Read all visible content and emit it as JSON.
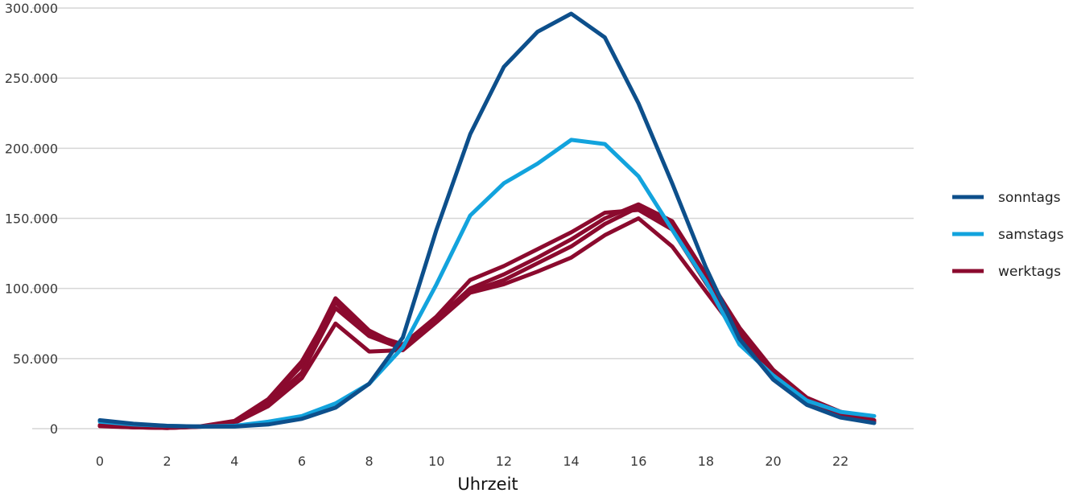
{
  "chart_data": {
    "type": "line",
    "title": "",
    "xlabel": "Uhrzeit",
    "ylabel": "",
    "xlim": [
      0,
      23
    ],
    "ylim": [
      0,
      300000
    ],
    "x_ticks": [
      "0",
      "2",
      "4",
      "6",
      "8",
      "10",
      "12",
      "14",
      "16",
      "18",
      "20",
      "22"
    ],
    "y_ticks": [
      "0",
      "50.000",
      "100.000",
      "150.000",
      "200.000",
      "250.000",
      "300.000"
    ],
    "grid": "horizontal",
    "legend_position": "right",
    "x": [
      0,
      1,
      2,
      3,
      4,
      5,
      6,
      7,
      8,
      9,
      10,
      11,
      12,
      13,
      14,
      15,
      16,
      17,
      18,
      19,
      20,
      21,
      22,
      23
    ],
    "legend": [
      {
        "label": "sonntags",
        "color": "#0d4f8b"
      },
      {
        "label": "samstags",
        "color": "#12a3dd"
      },
      {
        "label": "werktags",
        "color": "#8b0a2e"
      }
    ],
    "series": [
      {
        "group": "werktags",
        "color": "#8b0a2e",
        "values": [
          2000,
          1000,
          500,
          1500,
          5000,
          20000,
          45000,
          93000,
          70000,
          58000,
          78000,
          100000,
          110000,
          122000,
          135000,
          150000,
          160000,
          148000,
          110000,
          72000,
          42000,
          22000,
          12000,
          6000
        ]
      },
      {
        "group": "werktags",
        "color": "#8b0a2e",
        "values": [
          2500,
          1200,
          700,
          1700,
          5500,
          21000,
          48000,
          90000,
          68000,
          60000,
          80000,
          106000,
          116000,
          128000,
          140000,
          154000,
          156000,
          142000,
          104000,
          68000,
          40000,
          21000,
          11000,
          5500
        ]
      },
      {
        "group": "werktags",
        "color": "#8b0a2e",
        "values": [
          2000,
          1000,
          500,
          1500,
          4500,
          18000,
          40000,
          86000,
          66000,
          57000,
          77000,
          98000,
          106000,
          118000,
          130000,
          146000,
          158000,
          145000,
          108000,
          70000,
          41000,
          22000,
          12000,
          6000
        ]
      },
      {
        "group": "werktags",
        "color": "#8b0a2e",
        "values": [
          1800,
          900,
          500,
          1400,
          4000,
          16000,
          36000,
          75000,
          55000,
          56000,
          76000,
          97000,
          103000,
          112000,
          122000,
          138000,
          150000,
          130000,
          98000,
          66000,
          38000,
          20000,
          10000,
          5000
        ]
      },
      {
        "group": "samstags",
        "color": "#12a3dd",
        "values": [
          5000,
          3000,
          2000,
          1500,
          2000,
          5000,
          9000,
          18000,
          32000,
          58000,
          103000,
          152000,
          175000,
          189000,
          206000,
          203000,
          180000,
          142000,
          105000,
          60000,
          38000,
          20000,
          12000,
          9000
        ]
      },
      {
        "group": "sonntags",
        "color": "#0d4f8b",
        "values": [
          6000,
          3500,
          2000,
          1500,
          1500,
          3000,
          7000,
          15000,
          32000,
          65000,
          142000,
          210000,
          258000,
          283000,
          296000,
          279000,
          232000,
          175000,
          115000,
          64000,
          35000,
          17000,
          8000,
          4000
        ]
      }
    ]
  }
}
